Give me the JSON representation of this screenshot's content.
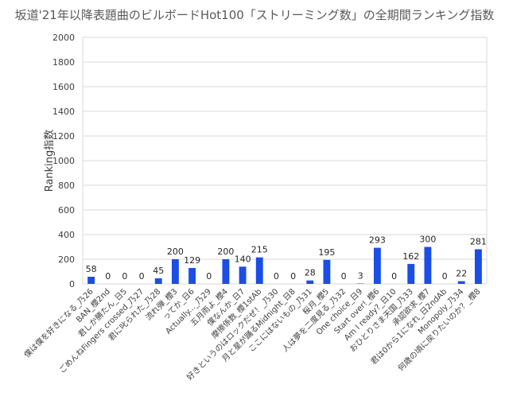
{
  "chart_data": {
    "type": "bar",
    "title": "坂道'21年以降表題曲のビルボードHot100「ストリーミング数」の全期間ランキング指数",
    "xlabel": "",
    "ylabel": "Ranking指数",
    "ylim": [
      0,
      2000
    ],
    "yticks": [
      0,
      200,
      400,
      600,
      800,
      1000,
      1200,
      1400,
      1600,
      1800,
      2000
    ],
    "grid": true,
    "legend": "none",
    "bar_color": "#1a4ee6",
    "categories": [
      "僕は僕を好きになる_乃26",
      "BAN_櫻2nd",
      "君しか勝たん_日5",
      "ごめんねFingers crossed_乃27",
      "君に叱られた_乃28",
      "流れ弾_櫻3",
      "ってか_日6",
      "Actually..._乃29",
      "五月雨よ_櫻4",
      "僕なんか_日7",
      "摩擦係数_櫻1stAb",
      "好きというのはロックだぜ！_乃30",
      "月と星が踊るMidnight_日8",
      "ここにはないもの_乃31",
      "桜月_櫻5",
      "人は夢を二度見る_乃32",
      "One choice_日9",
      "Start over!_櫻6",
      "Am I ready?_日10",
      "おひとりさま天国_乃33",
      "承認欲求_櫻7",
      "君は0から1になれ_日2ndAb",
      "Monopoly_乃34",
      "何歳の頃に戻りたいのか？_櫻8"
    ],
    "values": [
      58,
      0,
      0,
      0,
      45,
      200,
      129,
      0,
      200,
      140,
      215,
      0,
      0,
      28,
      195,
      0,
      3,
      293,
      0,
      162,
      300,
      0,
      22,
      281
    ]
  }
}
